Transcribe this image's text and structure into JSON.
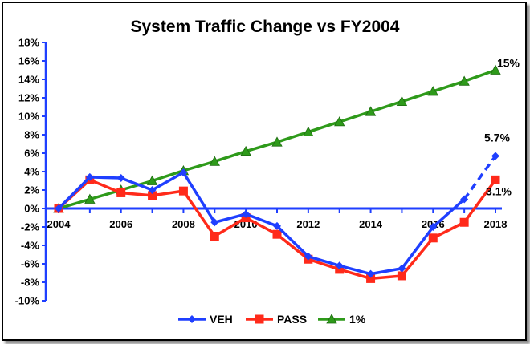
{
  "chart_data": {
    "type": "line",
    "title": "System Traffic Change vs FY2004",
    "xlabel": "",
    "ylabel": "",
    "x": [
      2004,
      2005,
      2006,
      2007,
      2008,
      2009,
      2010,
      2011,
      2012,
      2013,
      2014,
      2015,
      2016,
      2017,
      2018
    ],
    "x_tick_labels": [
      "2004",
      "2006",
      "2008",
      "2010",
      "2012",
      "2014",
      "2016",
      "2018"
    ],
    "y_tick_labels": [
      "-10%",
      "-8%",
      "-6%",
      "-4%",
      "-2%",
      "0%",
      "2%",
      "4%",
      "6%",
      "8%",
      "10%",
      "12%",
      "14%",
      "16%",
      "18%"
    ],
    "ylim": [
      -10,
      18
    ],
    "grid": false,
    "legend_position": "bottom",
    "series": [
      {
        "name": "VEH",
        "color": "#1f3fff",
        "marker": "diamond",
        "values": [
          0,
          3.4,
          3.3,
          2.0,
          3.9,
          -1.5,
          -0.6,
          -1.9,
          -5.2,
          -6.2,
          -7.1,
          -6.5,
          -2.0,
          1.0,
          5.7
        ],
        "dashed_from_index": 13
      },
      {
        "name": "PASS",
        "color": "#ff2a1a",
        "marker": "square",
        "values": [
          0,
          3.1,
          1.7,
          1.4,
          1.9,
          -3.0,
          -1.0,
          -2.8,
          -5.5,
          -6.6,
          -7.6,
          -7.3,
          -3.2,
          -1.5,
          3.1
        ]
      },
      {
        "name": "1%",
        "color": "#2e9a1a",
        "marker": "triangle",
        "values": [
          0,
          1.0,
          2.0,
          3.0,
          4.1,
          5.1,
          6.2,
          7.2,
          8.3,
          9.4,
          10.5,
          11.6,
          12.7,
          13.8,
          15.0
        ]
      }
    ],
    "annotations": [
      {
        "text": "15%",
        "x": 2018,
        "y": 15.0
      },
      {
        "text": "5.7%",
        "x": 2018,
        "y": 5.7
      },
      {
        "text": "3.1%",
        "x": 2018,
        "y": 3.1
      }
    ]
  }
}
